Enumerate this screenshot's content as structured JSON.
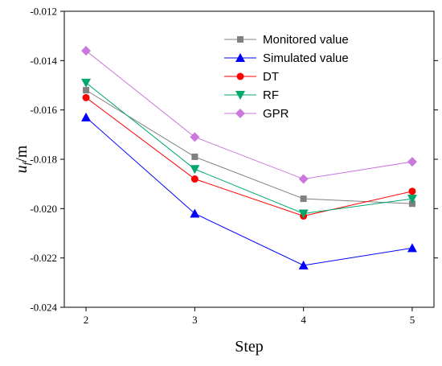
{
  "chart_data": {
    "type": "line",
    "title": "",
    "xlabel": "Step",
    "ylabel_main": "u",
    "ylabel_sub": "f",
    "ylabel_suffix": "/m",
    "x": [
      2,
      3,
      4,
      5
    ],
    "x_ticks": [
      "2",
      "3",
      "4",
      "5"
    ],
    "xlim": [
      1.8,
      5.2
    ],
    "ylim": [
      -0.024,
      -0.012
    ],
    "y_ticks": [
      "-0.024",
      "-0.022",
      "-0.020",
      "-0.018",
      "-0.016",
      "-0.014",
      "-0.012"
    ],
    "y_tick_values": [
      -0.024,
      -0.022,
      -0.02,
      -0.018,
      -0.016,
      -0.014,
      -0.012
    ],
    "grid": false,
    "legend_position": "top-right",
    "series": [
      {
        "name": "Monitored value",
        "values": [
          -0.0152,
          -0.0179,
          -0.0196,
          -0.0198
        ],
        "color": "#808080",
        "marker": "square"
      },
      {
        "name": "Simulated value",
        "values": [
          -0.0163,
          -0.0202,
          -0.0223,
          -0.0216
        ],
        "color": "#0000ff",
        "marker": "triangle-up"
      },
      {
        "name": "DT",
        "values": [
          -0.0155,
          -0.0188,
          -0.0203,
          -0.0193
        ],
        "color": "#ff0000",
        "marker": "circle"
      },
      {
        "name": "RF",
        "values": [
          -0.0149,
          -0.0184,
          -0.0202,
          -0.0196
        ],
        "color": "#00a86b",
        "marker": "triangle-down"
      },
      {
        "name": "GPR",
        "values": [
          -0.0136,
          -0.0171,
          -0.0188,
          -0.0181
        ],
        "color": "#cc77dd",
        "marker": "diamond"
      }
    ]
  }
}
